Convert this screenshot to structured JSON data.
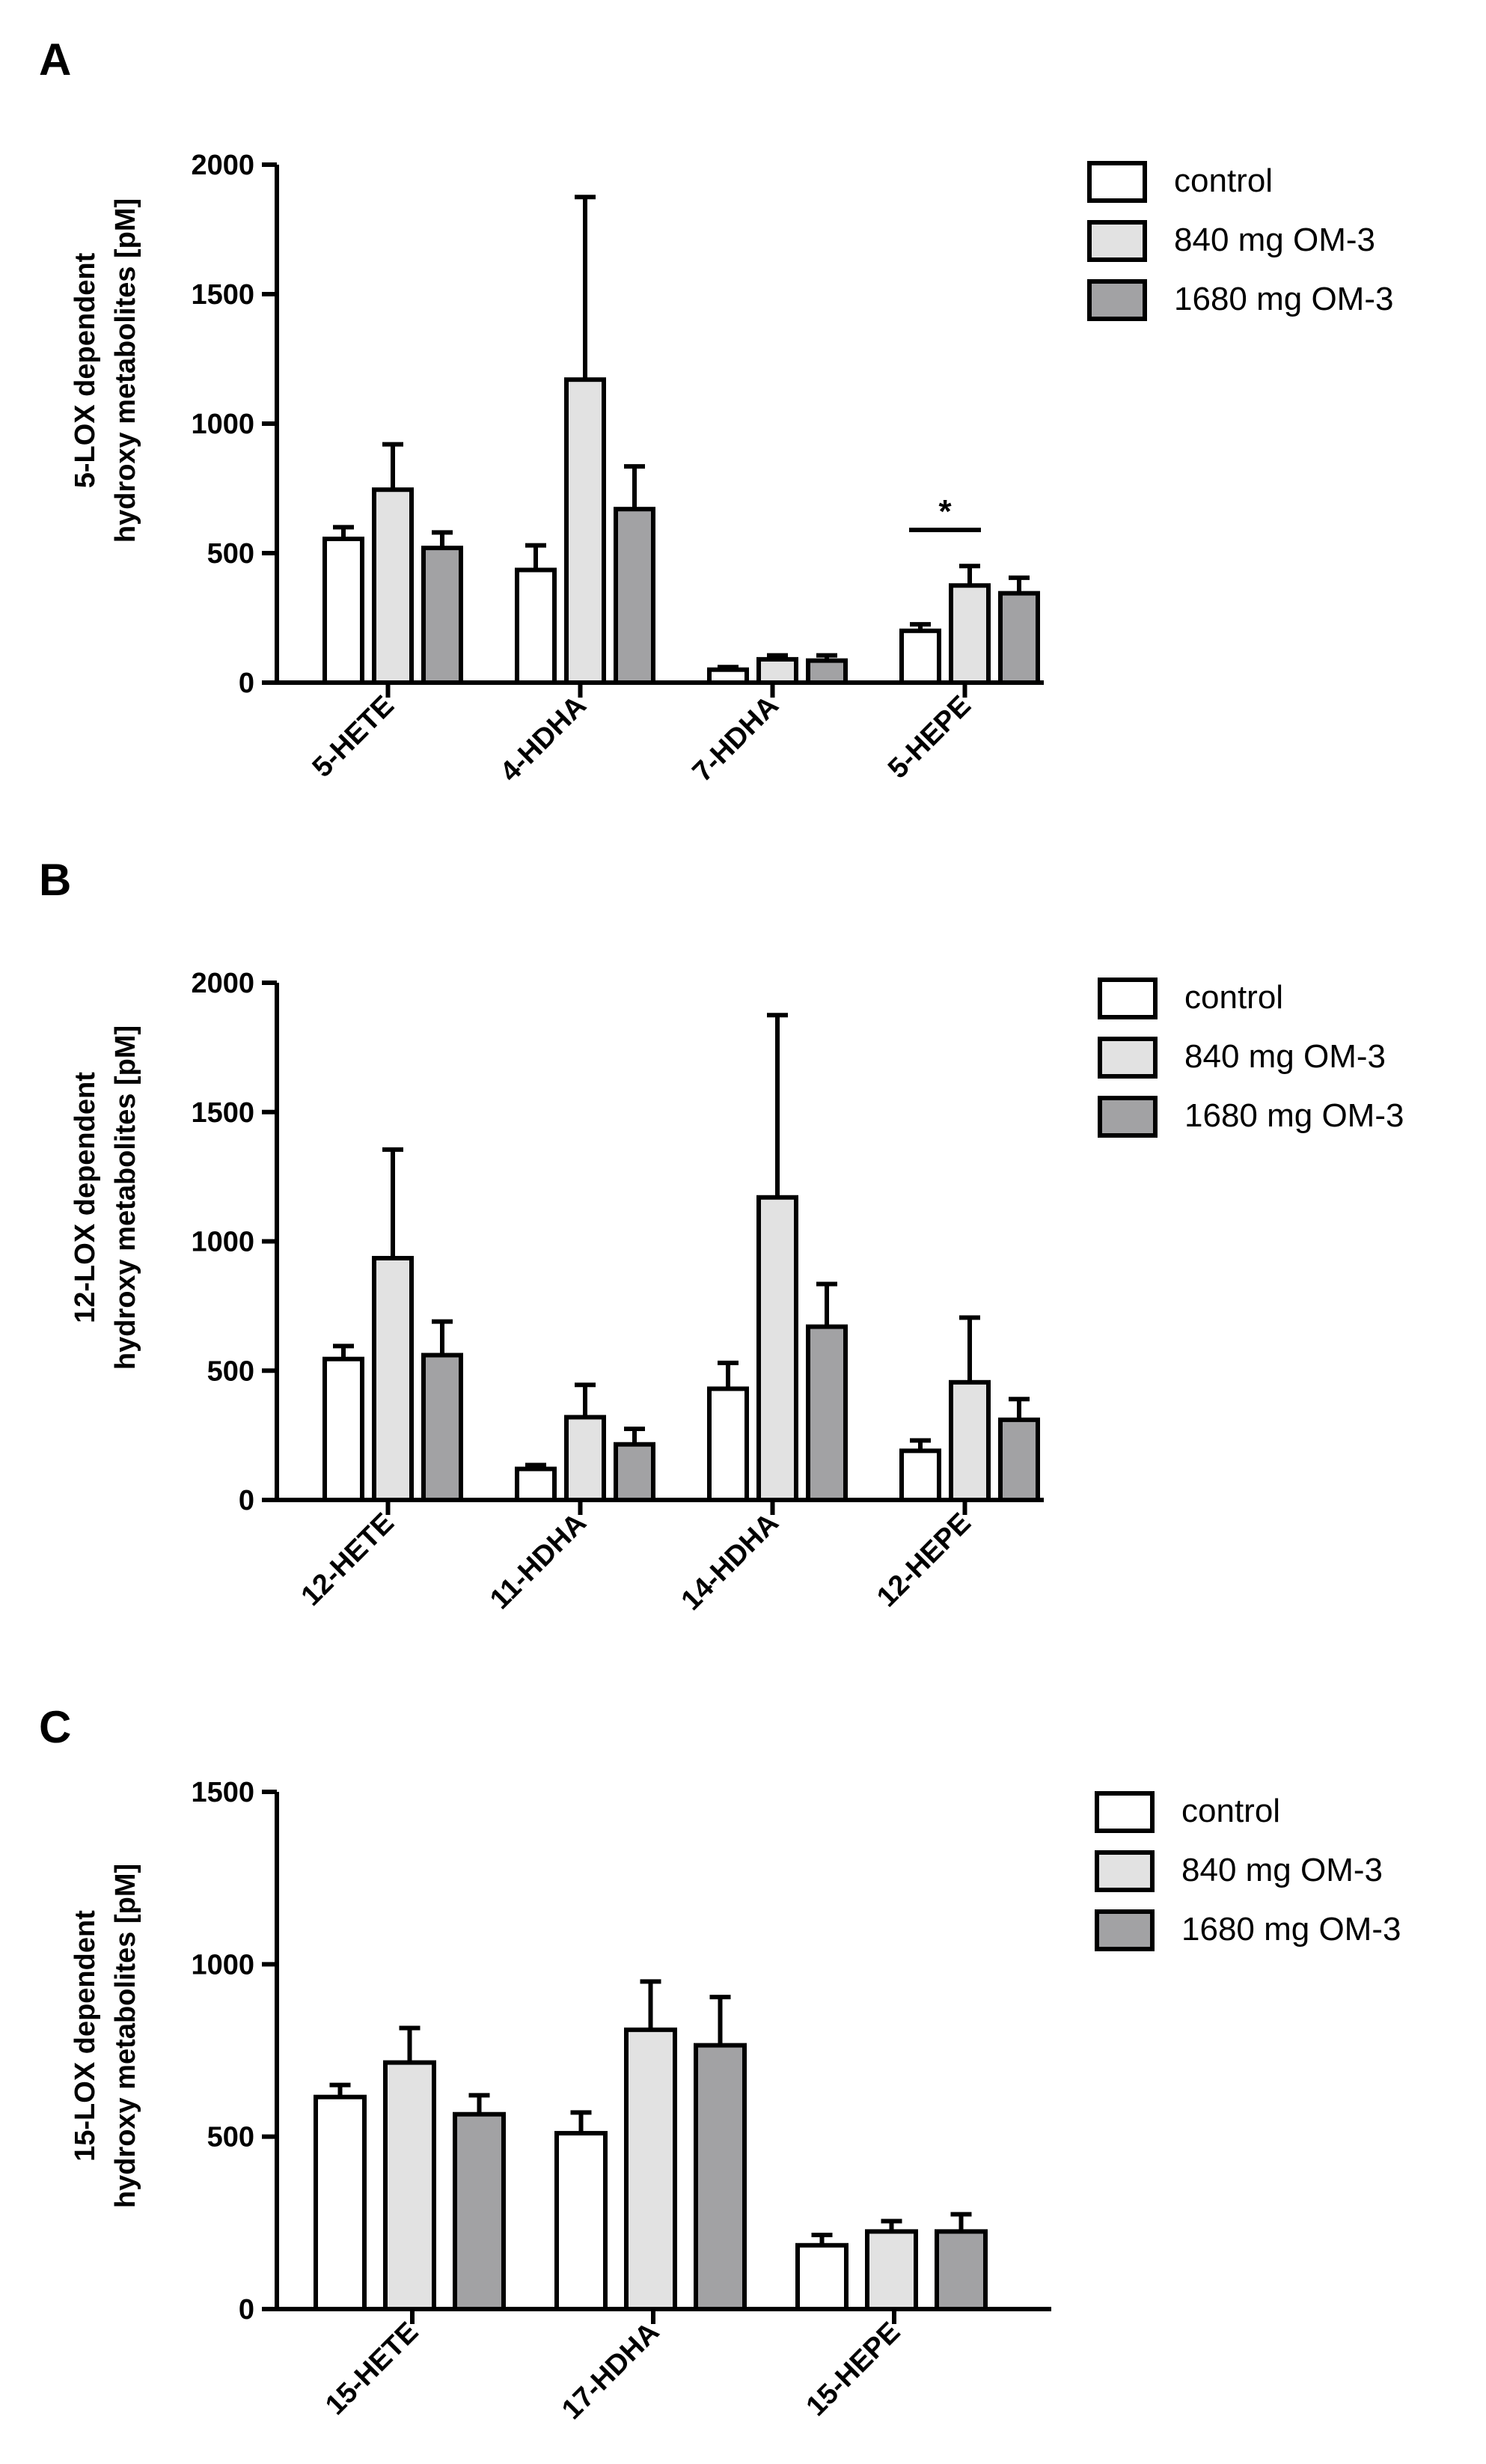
{
  "figure": {
    "legend_items": [
      {
        "label": "control",
        "color": "#ffffff"
      },
      {
        "label": "840 mg OM-3",
        "color": "#e2e2e2"
      },
      {
        "label": "1680 mg OM-3",
        "color": "#a2a2a4"
      }
    ]
  },
  "chart_data": [
    {
      "panel": "A",
      "type": "bar",
      "ylabel_line1": "5-LOX dependent",
      "ylabel_line2": "hydroxy metabolites [pM]",
      "xlabel": "",
      "ylim": [
        0,
        2000
      ],
      "yticks": [
        0,
        500,
        1000,
        1500,
        2000
      ],
      "categories": [
        "5-HETE",
        "4-HDHA",
        "7-HDHA",
        "5-HEPE"
      ],
      "series": [
        {
          "name": "control",
          "values": [
            555,
            435,
            50,
            200
          ],
          "errors": [
            45,
            95,
            10,
            25
          ]
        },
        {
          "name": "840 mg OM-3",
          "values": [
            745,
            1170,
            90,
            375
          ],
          "errors": [
            175,
            705,
            15,
            75
          ]
        },
        {
          "name": "1680 mg OM-3",
          "values": [
            520,
            670,
            85,
            345
          ],
          "errors": [
            60,
            165,
            20,
            60
          ]
        }
      ],
      "annotations": [
        {
          "text": "*",
          "category_index": 3,
          "from_series": 0,
          "to_series": 1
        }
      ]
    },
    {
      "panel": "B",
      "type": "bar",
      "ylabel_line1": "12-LOX dependent",
      "ylabel_line2": "hydroxy metabolites [pM]",
      "xlabel": "",
      "ylim": [
        0,
        2000
      ],
      "yticks": [
        0,
        500,
        1000,
        1500,
        2000
      ],
      "categories": [
        "12-HETE",
        "11-HDHA",
        "14-HDHA",
        "12-HEPE"
      ],
      "series": [
        {
          "name": "control",
          "values": [
            545,
            120,
            430,
            190
          ],
          "errors": [
            50,
            15,
            100,
            40
          ]
        },
        {
          "name": "840 mg OM-3",
          "values": [
            935,
            320,
            1170,
            455
          ],
          "errors": [
            420,
            125,
            705,
            250
          ]
        },
        {
          "name": "1680 mg OM-3",
          "values": [
            560,
            215,
            670,
            310
          ],
          "errors": [
            130,
            60,
            165,
            80
          ]
        }
      ],
      "annotations": []
    },
    {
      "panel": "C",
      "type": "bar",
      "ylabel_line1": "15-LOX dependent",
      "ylabel_line2": "hydroxy metabolites [pM]",
      "xlabel": "",
      "ylim": [
        0,
        1500
      ],
      "yticks": [
        0,
        500,
        1000,
        1500
      ],
      "categories": [
        "15-HETE",
        "17-HDHA",
        "15-HEPE"
      ],
      "series": [
        {
          "name": "control",
          "values": [
            615,
            510,
            185
          ],
          "errors": [
            35,
            60,
            30
          ]
        },
        {
          "name": "840 mg OM-3",
          "values": [
            715,
            810,
            225
          ],
          "errors": [
            100,
            140,
            30
          ]
        },
        {
          "name": "1680 mg OM-3",
          "values": [
            565,
            765,
            225
          ],
          "errors": [
            55,
            140,
            50
          ]
        }
      ],
      "annotations": []
    }
  ]
}
